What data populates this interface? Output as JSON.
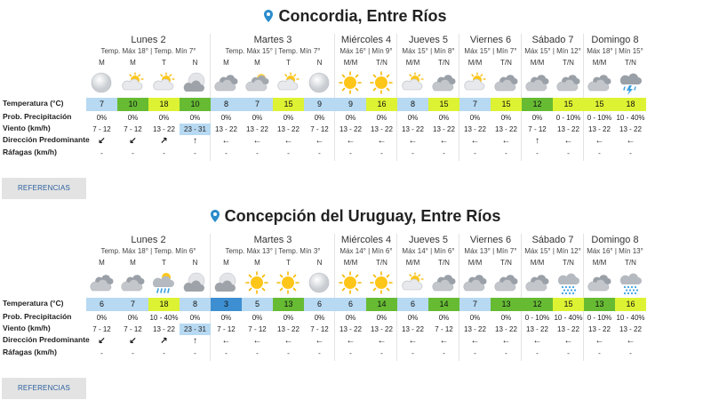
{
  "row_labels": {
    "temp": "Temperatura (°C)",
    "prob": "Prob. Precipitación",
    "wind": "Viento (km/h)",
    "dir": "Dirección Predominante",
    "gust": "Ráfagas (km/h)"
  },
  "sections": [
    {
      "city": "Concordia, Entre Ríos",
      "button": "REFERENCIAS",
      "days": [
        {
          "name": "Lunes 2",
          "temps": "Temp. Máx 18° | Temp. Mín 7°"
        },
        {
          "name": "Martes 3",
          "temps": "Temp. Máx 15° | Temp. Mín 7°"
        },
        {
          "name": "Miércoles 4",
          "temps": "Máx 16° | Mín 9°"
        },
        {
          "name": "Jueves 5",
          "temps": "Máx 15° | Mín 8°"
        },
        {
          "name": "Viernes 6",
          "temps": "Máx 15° | Mín 7°"
        },
        {
          "name": "Sábado 7",
          "temps": "Máx 15° | Mín 12°"
        },
        {
          "name": "Domingo 8",
          "temps": "Máx 18° | Mín 15°"
        }
      ],
      "periods": [
        {
          "label": "M",
          "icon": "full-moon-icon",
          "temp": "7",
          "temp_color": "#b7d9f2",
          "prob": "0%",
          "wind": "7 - 12",
          "wind_hl": false,
          "dir": "↙",
          "gust": "-"
        },
        {
          "label": "M",
          "icon": "partly-sunny-icon",
          "temp": "10",
          "temp_color": "#66bb33",
          "prob": "0%",
          "wind": "7 - 12",
          "wind_hl": false,
          "dir": "↙",
          "gust": "-"
        },
        {
          "label": "T",
          "icon": "partly-sunny-icon",
          "temp": "18",
          "temp_color": "#ddf233",
          "prob": "0%",
          "wind": "13 - 22",
          "wind_hl": false,
          "dir": "↗",
          "gust": "-"
        },
        {
          "label": "N",
          "icon": "moon-cloud-icon",
          "temp": "10",
          "temp_color": "#66bb33",
          "prob": "0%",
          "wind": "23 - 31",
          "wind_hl": true,
          "dir": "↑",
          "gust": "-"
        },
        {
          "label": "M",
          "icon": "cloudy-icon",
          "temp": "8",
          "temp_color": "#b7d9f2",
          "prob": "0%",
          "wind": "13 - 22",
          "wind_hl": false,
          "dir": "←",
          "gust": "-"
        },
        {
          "label": "M",
          "icon": "partly-cloudy-icon",
          "temp": "7",
          "temp_color": "#b7d9f2",
          "prob": "0%",
          "wind": "13 - 22",
          "wind_hl": false,
          "dir": "←",
          "gust": "-"
        },
        {
          "label": "T",
          "icon": "partly-sunny-icon",
          "temp": "15",
          "temp_color": "#ddf233",
          "prob": "0%",
          "wind": "13 - 22",
          "wind_hl": false,
          "dir": "←",
          "gust": "-"
        },
        {
          "label": "N",
          "icon": "full-moon-icon",
          "temp": "9",
          "temp_color": "#b7d9f2",
          "prob": "0%",
          "wind": "7 - 12",
          "wind_hl": false,
          "dir": "←",
          "gust": "-"
        },
        {
          "label": "M/M",
          "icon": "sun-icon",
          "temp": "9",
          "temp_color": "#b7d9f2",
          "prob": "0%",
          "wind": "13 - 22",
          "wind_hl": false,
          "dir": "←",
          "gust": "-"
        },
        {
          "label": "T/N",
          "icon": "sun-icon",
          "temp": "16",
          "temp_color": "#ddf233",
          "prob": "0%",
          "wind": "13 - 22",
          "wind_hl": false,
          "dir": "←",
          "gust": "-"
        },
        {
          "label": "M/M",
          "icon": "partly-sunny-icon",
          "temp": "8",
          "temp_color": "#b7d9f2",
          "prob": "0%",
          "wind": "13 - 22",
          "wind_hl": false,
          "dir": "←",
          "gust": "-"
        },
        {
          "label": "T/N",
          "icon": "cloudy-icon",
          "temp": "15",
          "temp_color": "#ddf233",
          "prob": "0%",
          "wind": "13 - 22",
          "wind_hl": false,
          "dir": "←",
          "gust": "-"
        },
        {
          "label": "M/M",
          "icon": "partly-sunny-icon",
          "temp": "7",
          "temp_color": "#b7d9f2",
          "prob": "0%",
          "wind": "13 - 22",
          "wind_hl": false,
          "dir": "←",
          "gust": "-"
        },
        {
          "label": "T/N",
          "icon": "cloudy-icon",
          "temp": "15",
          "temp_color": "#ddf233",
          "prob": "0%",
          "wind": "13 - 22",
          "wind_hl": false,
          "dir": "←",
          "gust": "-"
        },
        {
          "label": "M/M",
          "icon": "cloudy-icon",
          "temp": "12",
          "temp_color": "#66bb33",
          "prob": "0%",
          "wind": "7 - 12",
          "wind_hl": false,
          "dir": "↑",
          "gust": "-"
        },
        {
          "label": "T/N",
          "icon": "cloudy-icon",
          "temp": "15",
          "temp_color": "#ddf233",
          "prob": "0 - 10%",
          "wind": "13 - 22",
          "wind_hl": false,
          "dir": "←",
          "gust": "-"
        },
        {
          "label": "M/M",
          "icon": "cloudy-icon",
          "temp": "15",
          "temp_color": "#ddf233",
          "prob": "0 - 10%",
          "wind": "13 - 22",
          "wind_hl": false,
          "dir": "←",
          "gust": "-"
        },
        {
          "label": "T/N",
          "icon": "storm-icon",
          "temp": "18",
          "temp_color": "#ddf233",
          "prob": "10 - 40%",
          "wind": "13 - 22",
          "wind_hl": false,
          "dir": "←",
          "gust": "-"
        }
      ]
    },
    {
      "city": "Concepción del Uruguay, Entre Ríos",
      "button": "REFERENCIAS",
      "days": [
        {
          "name": "Lunes 2",
          "temps": "Temp. Máx 18° | Temp. Mín 6°"
        },
        {
          "name": "Martes 3",
          "temps": "Temp. Máx 13° | Temp. Mín 3°"
        },
        {
          "name": "Miércoles 4",
          "temps": "Máx 14° | Mín 6°"
        },
        {
          "name": "Jueves 5",
          "temps": "Máx 14° | Mín 6°"
        },
        {
          "name": "Viernes 6",
          "temps": "Máx 13° | Mín 7°"
        },
        {
          "name": "Sábado 7",
          "temps": "Máx 15° | Mín 12°"
        },
        {
          "name": "Domingo 8",
          "temps": "Máx 16° | Mín 13°"
        }
      ],
      "periods": [
        {
          "label": "M",
          "icon": "cloudy-icon",
          "temp": "6",
          "temp_color": "#b7d9f2",
          "prob": "0%",
          "wind": "7 - 12",
          "wind_hl": false,
          "dir": "↙",
          "gust": "-"
        },
        {
          "label": "M",
          "icon": "cloudy-icon",
          "temp": "7",
          "temp_color": "#b7d9f2",
          "prob": "0%",
          "wind": "7 - 12",
          "wind_hl": false,
          "dir": "↙",
          "gust": "-"
        },
        {
          "label": "T",
          "icon": "sun-rain-icon",
          "temp": "18",
          "temp_color": "#ddf233",
          "prob": "10 - 40%",
          "wind": "13 - 22",
          "wind_hl": false,
          "dir": "↗",
          "gust": "-"
        },
        {
          "label": "N",
          "icon": "moon-cloud-icon",
          "temp": "8",
          "temp_color": "#b7d9f2",
          "prob": "0%",
          "wind": "23 - 31",
          "wind_hl": true,
          "dir": "↑",
          "gust": "-"
        },
        {
          "label": "M",
          "icon": "moon-cloud-icon",
          "temp": "3",
          "temp_color": "#3d8fd1",
          "prob": "0%",
          "wind": "7 - 12",
          "wind_hl": false,
          "dir": "←",
          "gust": "-"
        },
        {
          "label": "M",
          "icon": "sun-icon",
          "temp": "5",
          "temp_color": "#b7d9f2",
          "prob": "0%",
          "wind": "7 - 12",
          "wind_hl": false,
          "dir": "←",
          "gust": "-"
        },
        {
          "label": "T",
          "icon": "sun-icon",
          "temp": "13",
          "temp_color": "#66bb33",
          "prob": "0%",
          "wind": "13 - 22",
          "wind_hl": false,
          "dir": "←",
          "gust": "-"
        },
        {
          "label": "N",
          "icon": "full-moon-icon",
          "temp": "6",
          "temp_color": "#b7d9f2",
          "prob": "0%",
          "wind": "7 - 12",
          "wind_hl": false,
          "dir": "←",
          "gust": "-"
        },
        {
          "label": "M/M",
          "icon": "sun-icon",
          "temp": "6",
          "temp_color": "#b7d9f2",
          "prob": "0%",
          "wind": "13 - 22",
          "wind_hl": false,
          "dir": "←",
          "gust": "-"
        },
        {
          "label": "T/N",
          "icon": "sun-icon",
          "temp": "14",
          "temp_color": "#66bb33",
          "prob": "0%",
          "wind": "13 - 22",
          "wind_hl": false,
          "dir": "←",
          "gust": "-"
        },
        {
          "label": "M/M",
          "icon": "partly-sunny-icon",
          "temp": "6",
          "temp_color": "#b7d9f2",
          "prob": "0%",
          "wind": "13 - 22",
          "wind_hl": false,
          "dir": "←",
          "gust": "-"
        },
        {
          "label": "T/N",
          "icon": "cloudy-icon",
          "temp": "14",
          "temp_color": "#66bb33",
          "prob": "0%",
          "wind": "7 - 12",
          "wind_hl": false,
          "dir": "←",
          "gust": "-"
        },
        {
          "label": "M/M",
          "icon": "cloudy-icon",
          "temp": "7",
          "temp_color": "#b7d9f2",
          "prob": "0%",
          "wind": "13 - 22",
          "wind_hl": false,
          "dir": "←",
          "gust": "-"
        },
        {
          "label": "T/N",
          "icon": "cloudy-icon",
          "temp": "13",
          "temp_color": "#66bb33",
          "prob": "0%",
          "wind": "13 - 22",
          "wind_hl": false,
          "dir": "←",
          "gust": "-"
        },
        {
          "label": "M/M",
          "icon": "cloudy-icon",
          "temp": "12",
          "temp_color": "#66bb33",
          "prob": "0 - 10%",
          "wind": "13 - 22",
          "wind_hl": false,
          "dir": "←",
          "gust": "-"
        },
        {
          "label": "T/N",
          "icon": "rain-icon",
          "temp": "15",
          "temp_color": "#ddf233",
          "prob": "10 - 40%",
          "wind": "13 - 22",
          "wind_hl": false,
          "dir": "←",
          "gust": "-"
        },
        {
          "label": "M/M",
          "icon": "cloudy-icon",
          "temp": "13",
          "temp_color": "#66bb33",
          "prob": "0 - 10%",
          "wind": "13 - 22",
          "wind_hl": false,
          "dir": "←",
          "gust": "-"
        },
        {
          "label": "T/N",
          "icon": "rain-icon",
          "temp": "16",
          "temp_color": "#ddf233",
          "prob": "10 - 40%",
          "wind": "13 - 22",
          "wind_hl": false,
          "dir": "←",
          "gust": "-"
        }
      ]
    }
  ]
}
